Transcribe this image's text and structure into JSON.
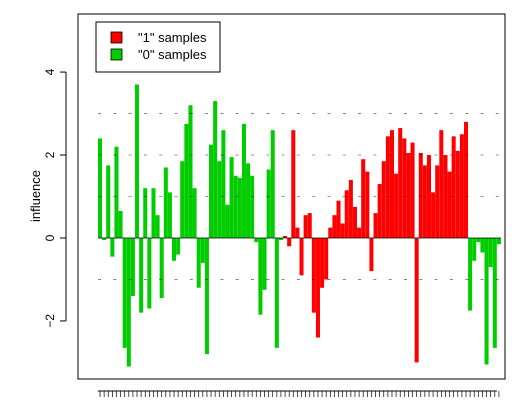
{
  "chart_data": {
    "type": "bar",
    "title": "",
    "xlabel": "",
    "ylabel": "influence",
    "ylim": [
      -3.4,
      5.4
    ],
    "yticks": [
      -2,
      0,
      2,
      4
    ],
    "ytick_labels": [
      "−2",
      "0",
      "2",
      "4"
    ],
    "grid": false,
    "legend_position": "top-left",
    "legend": [
      {
        "label": "\"1\" samples",
        "color": "#ff0000"
      },
      {
        "label": "\"0\" samples",
        "color": "#00cc00"
      }
    ],
    "series": [
      {
        "name": "\"0\" samples",
        "color": "#00cc00",
        "index_range": [
          1,
          59
        ],
        "values": [
          2.4,
          -0.05,
          1.75,
          -0.45,
          2.2,
          0.65,
          -2.65,
          -3.1,
          -1.4,
          3.7,
          -1.8,
          1.2,
          -1.7,
          1.2,
          0.55,
          -1.45,
          1.7,
          1.1,
          -0.55,
          -0.4,
          1.85,
          2.75,
          3.2,
          1.2,
          -1.2,
          -0.6,
          -2.8,
          2.25,
          3.3,
          1.85,
          2.6,
          0.8,
          1.95,
          1.5,
          1.45,
          2.75,
          1.8,
          1.5,
          -0.1,
          -1.85,
          -1.25,
          1.65,
          2.6,
          -2.65,
          -0.05
        ]
      },
      {
        "name": "\"1\" samples",
        "color": "#ff0000",
        "values": [
          0.05,
          -0.2,
          2.6,
          0.25,
          -0.9,
          0.55,
          0.6,
          -1.8,
          -2.4,
          -1.2,
          -1.0,
          0.25,
          0.55,
          0.9,
          0.35,
          1.15,
          1.4,
          0.75,
          0.25,
          1.9,
          1.6,
          -0.8,
          0.6,
          1.3,
          1.85,
          2.45,
          2.6,
          1.55,
          2.65,
          2.4,
          2.05,
          2.3,
          -3.0,
          2.05,
          1.75,
          2.0,
          1.1,
          1.75,
          2.6,
          2.0,
          1.6,
          2.45,
          2.1,
          2.5,
          2.8
        ]
      },
      {
        "name": "\"0\" samples",
        "color": "#00cc00",
        "values": [
          -1.75,
          -0.55,
          -0.1,
          -0.35,
          -3.05,
          -0.7,
          -2.65,
          -0.15
        ]
      }
    ],
    "extra_red_values": [
      1.15,
      0.65,
      1.8,
      2.05,
      1.55,
      2.25,
      0.25,
      2.05
    ],
    "x_tick_labels_note": "dense vertical sample index labels, unreadable"
  }
}
